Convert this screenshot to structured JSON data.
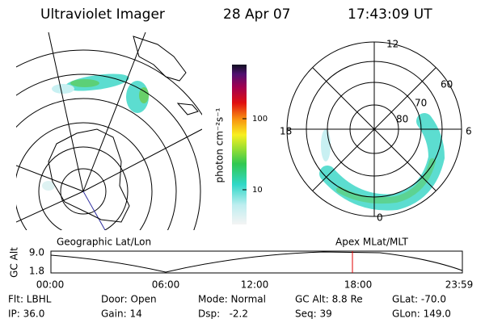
{
  "header": {
    "title": "Ultraviolet Imager",
    "date": "28 Apr 07",
    "time": "17:43:09 UT"
  },
  "colorbar": {
    "label": "photon cm⁻²s⁻¹",
    "ticks": [
      "100",
      "10"
    ]
  },
  "polar": {
    "labels": [
      "12",
      "60",
      "70",
      "80",
      "18",
      "6",
      "0"
    ]
  },
  "altitude_plot": {
    "y_label": "GC Alt",
    "y_ticks": [
      "9.0",
      "1.8"
    ],
    "left_title": "Geographic Lat/Lon",
    "right_title": "Apex MLat/MLT",
    "x_ticks": [
      "00:00",
      "06:00",
      "12:00",
      "18:00",
      "23:59"
    ]
  },
  "info": [
    [
      "Flt: LBHL",
      "Door: Open",
      "Mode: Normal",
      "GC Alt: 8.8 Re",
      "GLat: -70.0"
    ],
    [
      "IP: 36.0",
      "Gain: 14",
      "Dsp:   -2.2",
      "Seq: 39",
      "GLon: 149.0"
    ]
  ]
}
